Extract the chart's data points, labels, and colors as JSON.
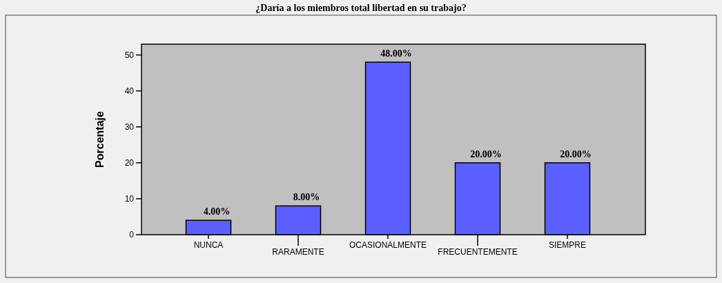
{
  "chart_data": {
    "type": "bar",
    "title": "¿Daría a los miembros total libertad en su trabajo?",
    "ylabel": "Porcentaje",
    "categories": [
      "NUNCA",
      "RARAMENTE",
      "OCASIONALMENTE",
      "FRECUENTEMENTE",
      "SIEMPRE"
    ],
    "values": [
      4,
      8,
      48,
      20,
      20
    ],
    "value_labels": [
      "4.00%",
      "8.00%",
      "48.00%",
      "20.00%",
      "20.00%"
    ],
    "color": "#5b5fff",
    "ylim": [
      0,
      53
    ],
    "yticks": [
      0,
      10,
      20,
      30,
      40,
      50
    ],
    "grid": false
  }
}
